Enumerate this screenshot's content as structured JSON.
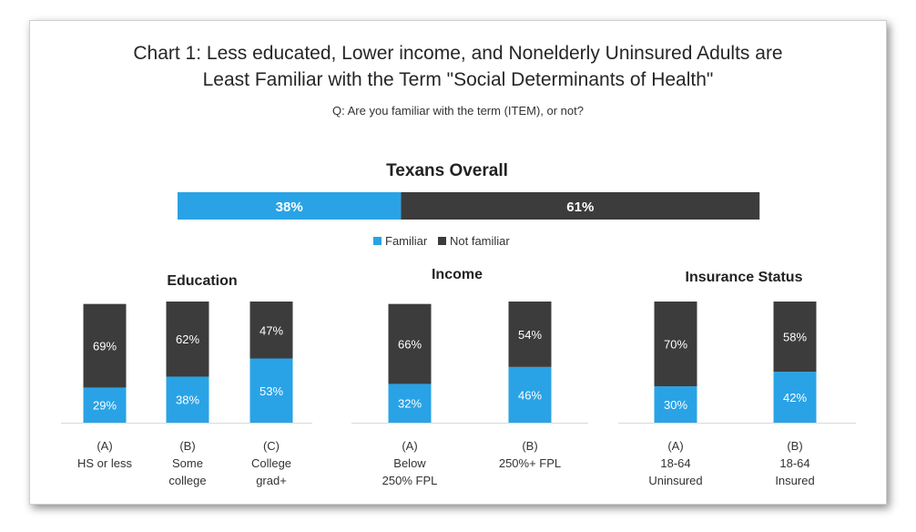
{
  "title": "Chart 1: Less educated, Lower income, and Nonelderly Uninsured Adults are\nLeast Familiar with the Term \"Social Determinants of Health\"",
  "subtitle": "Q: Are you familiar with the term (ITEM), or not?",
  "colors": {
    "familiar": "#29a3e6",
    "not_familiar": "#3c3c3c"
  },
  "legend": [
    {
      "label": "Familiar",
      "color": "#29a3e6"
    },
    {
      "label": "Not familiar",
      "color": "#3c3c3c"
    }
  ],
  "chart_data": [
    {
      "type": "bar",
      "orientation": "horizontal-stacked",
      "title": "Texans Overall",
      "categories": [
        "Texans Overall"
      ],
      "series": [
        {
          "name": "Familiar",
          "values": [
            38
          ]
        },
        {
          "name": "Not familiar",
          "values": [
            61
          ]
        }
      ]
    },
    {
      "type": "bar",
      "orientation": "vertical-stacked",
      "title": "Education",
      "categories": [
        [
          "(A)",
          "HS or less"
        ],
        [
          "(B)",
          "Some",
          "college"
        ],
        [
          "(C)",
          "College",
          "grad+"
        ]
      ],
      "series": [
        {
          "name": "Familiar",
          "values": [
            29,
            38,
            53
          ]
        },
        {
          "name": "Not familiar",
          "values": [
            69,
            62,
            47
          ]
        }
      ]
    },
    {
      "type": "bar",
      "orientation": "vertical-stacked",
      "title": "Income",
      "categories": [
        [
          "(A)",
          "Below",
          "250% FPL"
        ],
        [
          "(B)",
          "250%+ FPL"
        ]
      ],
      "series": [
        {
          "name": "Familiar",
          "values": [
            32,
            46
          ]
        },
        {
          "name": "Not familiar",
          "values": [
            66,
            54
          ]
        }
      ]
    },
    {
      "type": "bar",
      "orientation": "vertical-stacked",
      "title": "Insurance Status",
      "categories": [
        [
          "(A)",
          "18-64",
          "Uninsured"
        ],
        [
          "(B)",
          "18-64",
          "Insured"
        ]
      ],
      "series": [
        {
          "name": "Familiar",
          "values": [
            30,
            42
          ]
        },
        {
          "name": "Not familiar",
          "values": [
            70,
            58
          ]
        }
      ]
    }
  ]
}
